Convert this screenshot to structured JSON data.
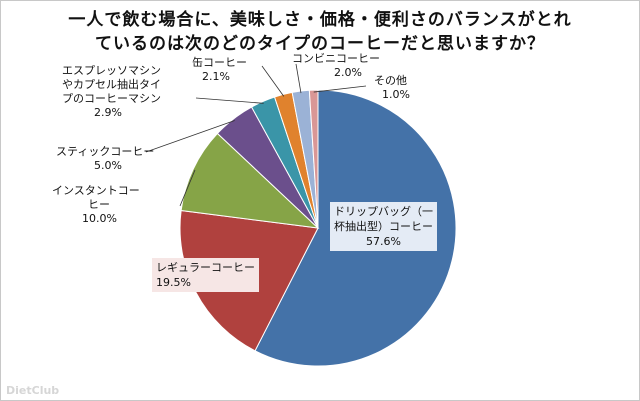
{
  "chart_data": {
    "type": "pie",
    "title_lines": [
      "一人で飲む場合に、美味しさ・価格・便利さのバランスがとれ",
      "ているのは次のどのタイプのコーヒーだと思いますか？"
    ],
    "slices": [
      {
        "label_lines": [
          "ドリップバッグ（一",
          "杯抽出型）コーヒー"
        ],
        "value": 57.6,
        "value_label": "57.6%",
        "color": "#4472a8"
      },
      {
        "label_lines": [
          "レギュラーコーヒー"
        ],
        "value": 19.5,
        "value_label": "19.5%",
        "color": "#b0413e"
      },
      {
        "label_lines": [
          "インスタントコー",
          "ヒー"
        ],
        "value": 10.0,
        "value_label": "10.0%",
        "color": "#86a447"
      },
      {
        "label_lines": [
          "スティックコーヒー"
        ],
        "value": 5.0,
        "value_label": "5.0%",
        "color": "#6b4f8c"
      },
      {
        "label_lines": [
          "エスプレッソマシン",
          "やカプセル抽出タイ",
          "プのコーヒーマシン"
        ],
        "value": 2.9,
        "value_label": "2.9%",
        "color": "#3a95a8"
      },
      {
        "label_lines": [
          "缶コーヒー"
        ],
        "value": 2.1,
        "value_label": "2.1%",
        "color": "#e0822d"
      },
      {
        "label_lines": [
          "コンビニコーヒー"
        ],
        "value": 2.0,
        "value_label": "2.0%",
        "color": "#9bb2d6"
      },
      {
        "label_lines": [
          "その他"
        ],
        "value": 1.0,
        "value_label": "1.0%",
        "color": "#d99796"
      }
    ]
  },
  "watermark": "DietClub"
}
